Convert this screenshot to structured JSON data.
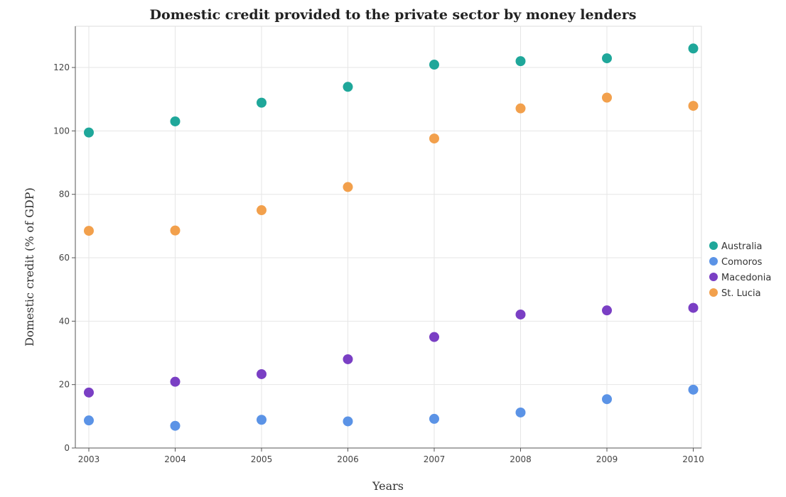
{
  "chart_data": {
    "type": "scatter",
    "title": "Domestic credit provided to the private sector by money lenders",
    "xlabel": "Years",
    "ylabel": "Domestic credit (% of GDP)",
    "categories": [
      "2003",
      "2004",
      "2005",
      "2006",
      "2007",
      "2008",
      "2009",
      "2010"
    ],
    "ylim": [
      0,
      133
    ],
    "yticks": [
      0,
      20,
      40,
      60,
      80,
      100,
      120
    ],
    "grid": true,
    "legend_position": "right",
    "series": [
      {
        "name": "Australia",
        "color": "#1fa79a",
        "values": [
          99.5,
          103.0,
          108.9,
          113.9,
          120.9,
          122.0,
          122.9,
          126.0
        ]
      },
      {
        "name": "Comoros",
        "color": "#5b93e6",
        "values": [
          8.7,
          7.0,
          8.9,
          8.4,
          9.2,
          11.2,
          15.4,
          18.4
        ]
      },
      {
        "name": "Macedonia",
        "color": "#7a3fc4",
        "values": [
          17.5,
          20.9,
          23.3,
          28.0,
          35.0,
          42.1,
          43.4,
          44.2
        ]
      },
      {
        "name": "St. Lucia",
        "color": "#f2a04c",
        "values": [
          68.5,
          68.6,
          75.0,
          82.3,
          97.6,
          107.1,
          110.5,
          107.9
        ]
      }
    ]
  }
}
